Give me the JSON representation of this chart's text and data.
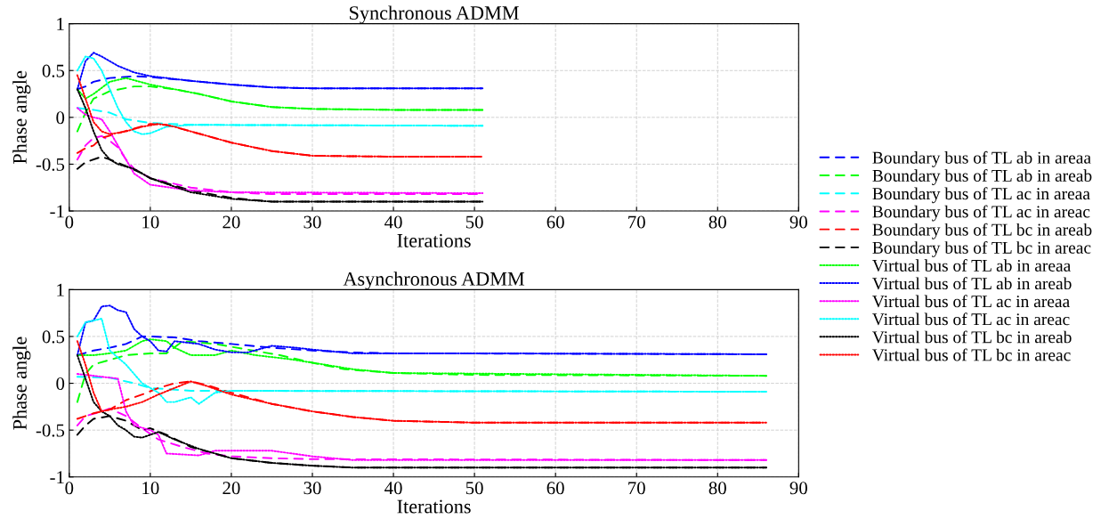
{
  "chart_data": [
    {
      "type": "line",
      "title": "Synchronous ADMM",
      "xlabel": "Iterations",
      "ylabel": "Phase angle",
      "xlim": [
        0,
        90
      ],
      "xticks": [
        0,
        10,
        20,
        30,
        40,
        50,
        60,
        70,
        80,
        90
      ],
      "ylim": [
        -1,
        1
      ],
      "yticks": [
        -1,
        -0.5,
        0,
        0.5,
        1
      ],
      "grid": true,
      "legend": "right",
      "marker": "none",
      "series": [
        {
          "name": "Boundary bus of TL ab in areaa",
          "color": "#0000ff",
          "line_style": "dashed",
          "x": [
            1,
            2,
            3,
            5,
            8,
            10,
            15,
            20,
            25,
            30,
            40,
            51
          ],
          "values": [
            0.3,
            0.33,
            0.38,
            0.42,
            0.44,
            0.43,
            0.39,
            0.35,
            0.32,
            0.31,
            0.31,
            0.31
          ]
        },
        {
          "name": "Boundary bus of TL ab in areab",
          "color": "#00ff00",
          "line_style": "dashed",
          "x": [
            1,
            2,
            3,
            5,
            8,
            10,
            13,
            16,
            20,
            25,
            30,
            40,
            51
          ],
          "values": [
            -0.15,
            0.05,
            0.2,
            0.28,
            0.33,
            0.33,
            0.3,
            0.25,
            0.17,
            0.11,
            0.09,
            0.08,
            0.08
          ]
        },
        {
          "name": "Boundary bus of TL ac in areaa",
          "color": "#00ffff",
          "line_style": "dashed",
          "x": [
            1,
            3,
            5,
            7,
            10,
            15,
            51
          ],
          "values": [
            0.1,
            0.08,
            0.05,
            -0.02,
            -0.06,
            -0.08,
            -0.09
          ]
        },
        {
          "name": "Boundary bus of TL ac in areac",
          "color": "#ff00ff",
          "line_style": "dashed",
          "x": [
            1,
            2,
            3,
            4,
            5,
            6,
            7,
            8,
            10,
            15,
            20,
            25,
            51
          ],
          "values": [
            -0.45,
            -0.3,
            -0.22,
            -0.2,
            -0.25,
            -0.32,
            -0.45,
            -0.55,
            -0.65,
            -0.75,
            -0.8,
            -0.82,
            -0.82
          ]
        },
        {
          "name": "Boundary bus of TL bc in areab",
          "color": "#ff0000",
          "line_style": "dashed",
          "x": [
            1,
            2,
            3,
            4,
            6,
            8,
            10,
            12,
            15,
            20,
            25,
            30,
            40,
            51
          ],
          "values": [
            -0.38,
            -0.33,
            -0.3,
            -0.22,
            -0.17,
            -0.12,
            -0.07,
            -0.08,
            -0.15,
            -0.27,
            -0.36,
            -0.41,
            -0.42,
            -0.42
          ]
        },
        {
          "name": "Boundary bus of TL bc in areac",
          "color": "#000000",
          "line_style": "dashed",
          "x": [
            1,
            2,
            4,
            5,
            7,
            9,
            10,
            15,
            20,
            25,
            30,
            51
          ],
          "values": [
            -0.55,
            -0.48,
            -0.42,
            -0.45,
            -0.52,
            -0.6,
            -0.65,
            -0.78,
            -0.86,
            -0.9,
            -0.9,
            -0.9
          ]
        },
        {
          "name": "Virtual bus of TL ab in areaa",
          "color": "#00ff00",
          "line_style": "dotted",
          "x": [
            1,
            2,
            3,
            5,
            7,
            10,
            13,
            16,
            20,
            25,
            30,
            40,
            51
          ],
          "values": [
            0.3,
            0.2,
            0.25,
            0.38,
            0.42,
            0.35,
            0.3,
            0.25,
            0.17,
            0.11,
            0.09,
            0.08,
            0.08
          ]
        },
        {
          "name": "Virtual bus of TL ab in areab",
          "color": "#0000ff",
          "line_style": "dotted",
          "x": [
            1,
            2,
            3,
            4,
            6,
            8,
            10,
            15,
            20,
            25,
            30,
            51
          ],
          "values": [
            0.3,
            0.6,
            0.69,
            0.65,
            0.55,
            0.48,
            0.44,
            0.39,
            0.35,
            0.32,
            0.31,
            0.31
          ]
        },
        {
          "name": "Virtual bus of TL ac in areaa",
          "color": "#ff00ff",
          "line_style": "dotted",
          "x": [
            1,
            2,
            3,
            4,
            5,
            6,
            7,
            8,
            10,
            15,
            20,
            51
          ],
          "values": [
            0.1,
            0.03,
            0.0,
            -0.02,
            -0.15,
            -0.3,
            -0.45,
            -0.6,
            -0.72,
            -0.78,
            -0.8,
            -0.81
          ]
        },
        {
          "name": "Virtual bus of TL ac in areac",
          "color": "#00ffff",
          "line_style": "dotted",
          "x": [
            1,
            2,
            3,
            4,
            5,
            6,
            7,
            8,
            9,
            10,
            12,
            15,
            51
          ],
          "values": [
            0.5,
            0.65,
            0.63,
            0.5,
            0.3,
            0.1,
            -0.05,
            -0.15,
            -0.18,
            -0.17,
            -0.1,
            -0.08,
            -0.09
          ]
        },
        {
          "name": "Virtual bus of TL bc in areab",
          "color": "#000000",
          "line_style": "dotted",
          "x": [
            1,
            2,
            3,
            4,
            5,
            6,
            8,
            10,
            15,
            20,
            25,
            51
          ],
          "values": [
            0.3,
            0.1,
            -0.15,
            -0.35,
            -0.45,
            -0.5,
            -0.55,
            -0.65,
            -0.8,
            -0.87,
            -0.9,
            -0.9
          ]
        },
        {
          "name": "Virtual bus of TL bc in areac",
          "color": "#ff0000",
          "line_style": "dotted",
          "x": [
            1,
            2,
            3,
            4,
            5,
            7,
            9,
            11,
            13,
            15,
            20,
            25,
            30,
            40,
            51
          ],
          "values": [
            0.45,
            0.2,
            -0.05,
            -0.15,
            -0.18,
            -0.15,
            -0.1,
            -0.07,
            -0.1,
            -0.15,
            -0.27,
            -0.36,
            -0.41,
            -0.42,
            -0.42
          ]
        }
      ]
    },
    {
      "type": "line",
      "title": "Asynchronous ADMM",
      "xlabel": "Iterations",
      "ylabel": "Phase angle",
      "xlim": [
        0,
        90
      ],
      "xticks": [
        0,
        10,
        20,
        30,
        40,
        50,
        60,
        70,
        80,
        90
      ],
      "ylim": [
        -1,
        1
      ],
      "yticks": [
        -1,
        -0.5,
        0,
        0.5,
        1
      ],
      "grid": true,
      "marker": "none",
      "series": [
        {
          "color": "#0000ff",
          "line_style": "dashed",
          "x": [
            1,
            3,
            5,
            7,
            9,
            10,
            13,
            16,
            20,
            25,
            30,
            35,
            40,
            86
          ],
          "values": [
            0.3,
            0.35,
            0.38,
            0.42,
            0.5,
            0.5,
            0.49,
            0.45,
            0.42,
            0.38,
            0.35,
            0.33,
            0.32,
            0.31
          ]
        },
        {
          "color": "#00ff00",
          "line_style": "dashed",
          "x": [
            1,
            2,
            3,
            5,
            7,
            10,
            12,
            14,
            18,
            22,
            26,
            30,
            34,
            40,
            50,
            86
          ],
          "values": [
            -0.2,
            0.1,
            0.2,
            0.25,
            0.3,
            0.32,
            0.32,
            0.45,
            0.42,
            0.36,
            0.3,
            0.22,
            0.15,
            0.11,
            0.09,
            0.08
          ]
        },
        {
          "color": "#00ffff",
          "line_style": "dashed",
          "x": [
            1,
            5,
            8,
            10,
            15,
            86
          ],
          "values": [
            0.07,
            0.06,
            0.0,
            -0.05,
            -0.08,
            -0.09
          ]
        },
        {
          "color": "#ff00ff",
          "line_style": "dashed",
          "x": [
            1,
            2,
            4,
            5,
            7,
            9,
            11,
            14,
            17,
            20,
            25,
            30,
            86
          ],
          "values": [
            -0.45,
            -0.35,
            -0.3,
            -0.27,
            -0.35,
            -0.48,
            -0.6,
            -0.68,
            -0.75,
            -0.78,
            -0.8,
            -0.81,
            -0.82
          ]
        },
        {
          "color": "#ff0000",
          "line_style": "dashed",
          "x": [
            1,
            3,
            5,
            7,
            9,
            11,
            13,
            15,
            17,
            20,
            25,
            30,
            35,
            40,
            50,
            86
          ],
          "values": [
            -0.38,
            -0.32,
            -0.28,
            -0.18,
            -0.12,
            -0.05,
            0.0,
            0.02,
            -0.02,
            -0.1,
            -0.22,
            -0.3,
            -0.36,
            -0.4,
            -0.42,
            -0.42
          ]
        },
        {
          "color": "#000000",
          "line_style": "dashed",
          "x": [
            1,
            2,
            3,
            5,
            7,
            9,
            10,
            12,
            15,
            20,
            25,
            30,
            35,
            86
          ],
          "values": [
            -0.55,
            -0.45,
            -0.38,
            -0.35,
            -0.4,
            -0.5,
            -0.48,
            -0.55,
            -0.68,
            -0.8,
            -0.85,
            -0.88,
            -0.9,
            -0.9
          ]
        },
        {
          "color": "#00ff00",
          "line_style": "dotted",
          "x": [
            1,
            3,
            5,
            7,
            9,
            10,
            12,
            13,
            15,
            18,
            20,
            23,
            27,
            30,
            35,
            40,
            86
          ],
          "values": [
            0.3,
            0.3,
            0.32,
            0.35,
            0.45,
            0.47,
            0.45,
            0.38,
            0.3,
            0.3,
            0.35,
            0.3,
            0.26,
            0.22,
            0.15,
            0.11,
            0.08
          ]
        },
        {
          "color": "#0000ff",
          "line_style": "dotted",
          "x": [
            1,
            2,
            3,
            4,
            5,
            6,
            7,
            8,
            9,
            10,
            11,
            12,
            13,
            16,
            18,
            20,
            22,
            25,
            28,
            30,
            35,
            50,
            86
          ],
          "values": [
            0.3,
            0.65,
            0.67,
            0.82,
            0.83,
            0.78,
            0.76,
            0.58,
            0.5,
            0.45,
            0.35,
            0.34,
            0.45,
            0.42,
            0.36,
            0.33,
            0.33,
            0.4,
            0.38,
            0.36,
            0.32,
            0.32,
            0.31
          ]
        },
        {
          "color": "#ff00ff",
          "line_style": "dotted",
          "x": [
            1,
            4,
            6,
            7,
            8,
            10,
            11,
            12,
            16,
            18,
            25,
            30,
            35,
            86
          ],
          "values": [
            0.1,
            0.07,
            0.05,
            -0.3,
            -0.45,
            -0.5,
            -0.55,
            -0.75,
            -0.77,
            -0.72,
            -0.72,
            -0.78,
            -0.82,
            -0.82
          ]
        },
        {
          "color": "#00ffff",
          "line_style": "dotted",
          "x": [
            1,
            2,
            3,
            4,
            5,
            7,
            9,
            11,
            12,
            13,
            15,
            16,
            18,
            20,
            86
          ],
          "values": [
            0.5,
            0.65,
            0.67,
            0.69,
            0.35,
            0.2,
            0.0,
            -0.1,
            -0.2,
            -0.2,
            -0.15,
            -0.22,
            -0.1,
            -0.08,
            -0.09
          ]
        },
        {
          "color": "#000000",
          "line_style": "dotted",
          "x": [
            1,
            2,
            3,
            4,
            5,
            6,
            7,
            8,
            9,
            10,
            11,
            13,
            16,
            20,
            25,
            30,
            35,
            86
          ],
          "values": [
            0.3,
            0.05,
            -0.2,
            -0.3,
            -0.35,
            -0.45,
            -0.5,
            -0.57,
            -0.58,
            -0.55,
            -0.52,
            -0.6,
            -0.7,
            -0.8,
            -0.85,
            -0.88,
            -0.9,
            -0.9
          ]
        },
        {
          "color": "#ff0000",
          "line_style": "dotted",
          "x": [
            1,
            2,
            3,
            4,
            5,
            7,
            9,
            11,
            13,
            15,
            17,
            20,
            25,
            30,
            35,
            40,
            50,
            86
          ],
          "values": [
            0.45,
            0.2,
            -0.1,
            -0.3,
            -0.28,
            -0.25,
            -0.2,
            -0.12,
            -0.05,
            0.02,
            -0.03,
            -0.12,
            -0.22,
            -0.3,
            -0.36,
            -0.4,
            -0.42,
            -0.42
          ]
        }
      ]
    }
  ]
}
